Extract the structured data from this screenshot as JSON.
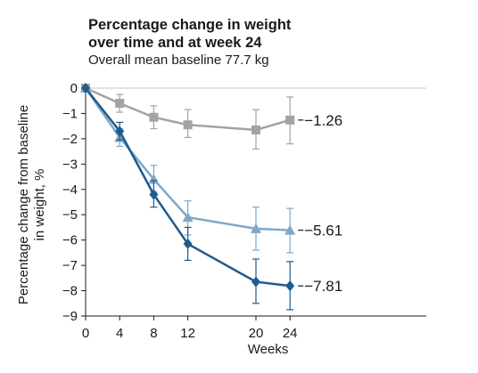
{
  "chart_data": {
    "type": "line",
    "title_lines": [
      "Percentage change in weight",
      "over time and at week 24"
    ],
    "subtitle": "Overall mean baseline 77.7 kg",
    "xlabel": "Weeks",
    "ylabel_lines": [
      "Percentage change from baseline",
      "in weight, %"
    ],
    "x_ticks": [
      0,
      4,
      8,
      12,
      20,
      24
    ],
    "y_ticks": [
      0,
      -1,
      -2,
      -3,
      -4,
      -5,
      -6,
      -7,
      -8,
      -9
    ],
    "y_tick_labels": [
      "0",
      "−1",
      "−2",
      "−3",
      "−4",
      "−5",
      "−6",
      "−7",
      "−8",
      "−9"
    ],
    "xlim": [
      0,
      40
    ],
    "ylim": [
      -9,
      0
    ],
    "grid": false,
    "series": [
      {
        "color": "#a3a3a3",
        "marker": "square",
        "x": [
          0,
          4,
          8,
          12,
          20,
          24
        ],
        "y": [
          0,
          -0.6,
          -1.15,
          -1.45,
          -1.65,
          -1.26
        ],
        "err_low": [
          0,
          -0.95,
          -1.6,
          -1.95,
          -2.4,
          -2.2
        ],
        "err_high": [
          0,
          -0.25,
          -0.7,
          -0.85,
          -0.85,
          -0.35
        ],
        "end_label": "−1.26"
      },
      {
        "color": "#7ea8ca",
        "marker": "triangle",
        "x": [
          0,
          4,
          8,
          12,
          20,
          24
        ],
        "y": [
          0,
          -1.95,
          -3.6,
          -5.1,
          -5.55,
          -5.61
        ],
        "err_low": [
          0,
          -2.3,
          -4.1,
          -5.8,
          -6.4,
          -6.5
        ],
        "err_high": [
          0,
          -1.6,
          -3.05,
          -4.45,
          -4.7,
          -4.75
        ],
        "end_label": "−5.61"
      },
      {
        "color": "#1e5b8f",
        "marker": "diamond",
        "x": [
          0,
          4,
          8,
          12,
          20,
          24
        ],
        "y": [
          0,
          -1.7,
          -4.2,
          -6.15,
          -7.65,
          -7.81
        ],
        "err_low": [
          0,
          -2.05,
          -4.7,
          -6.8,
          -8.5,
          -8.75
        ],
        "err_high": [
          0,
          -1.35,
          -3.65,
          -5.5,
          -6.75,
          -6.85
        ],
        "end_label": "−7.81"
      }
    ]
  }
}
